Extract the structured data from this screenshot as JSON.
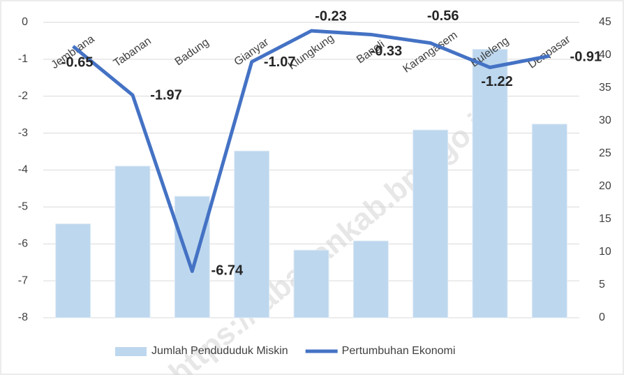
{
  "chart_data": {
    "type": "bar-line",
    "categories": [
      "Jembrana",
      "Tabanan",
      "Badung",
      "Gianyar",
      "Klungkung",
      "Bangli",
      "Karangasem",
      "Buleleng",
      "Denpasar"
    ],
    "series": [
      {
        "name": "Jumlah Pendududuk Miskin",
        "type": "bar",
        "axis": "y2",
        "color": "#bdd7ee",
        "values": [
          14.3,
          23.1,
          18.5,
          25.4,
          10.3,
          11.7,
          28.6,
          40.9,
          29.5
        ]
      },
      {
        "name": "Pertumbuhan Ekonomi",
        "type": "line",
        "axis": "y",
        "color": "#4472c4",
        "values": [
          -0.65,
          -1.97,
          -6.74,
          -1.07,
          -0.23,
          -0.33,
          -0.56,
          -1.22,
          -0.91
        ]
      }
    ],
    "ylim": [
      -8,
      0
    ],
    "yticks": [
      0,
      -1,
      -2,
      -3,
      -4,
      -5,
      -6,
      -7,
      -8
    ],
    "y2lim": [
      0,
      45
    ],
    "y2ticks": [
      0,
      5,
      10,
      15,
      20,
      25,
      30,
      35,
      40,
      45
    ],
    "grid": true,
    "legend": "bottom",
    "watermark": "https://tabanankab.bps.go.id"
  }
}
